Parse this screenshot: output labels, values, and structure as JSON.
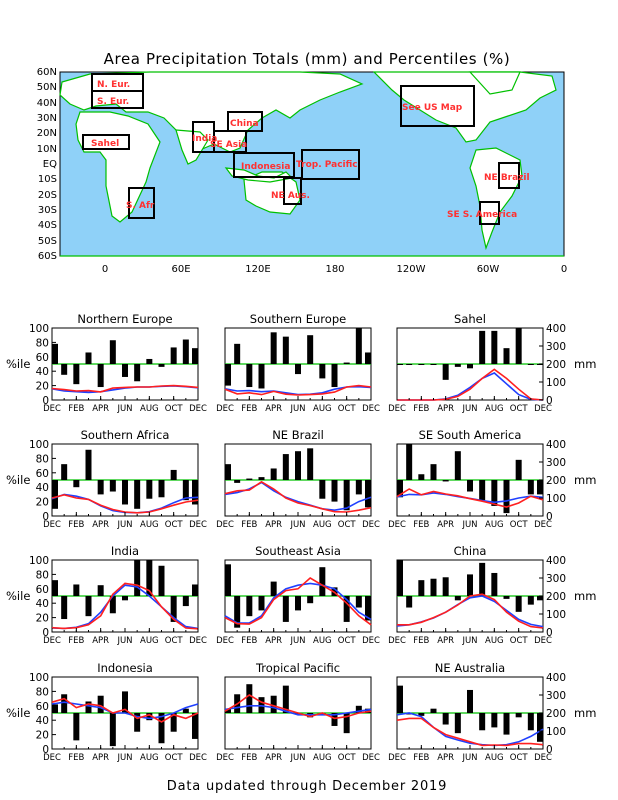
{
  "page": {
    "title": "Area Precipitation Totals (mm) and Percentiles (%)",
    "footer": "Data updated through December 2019"
  },
  "map": {
    "lat_labels": [
      "60N",
      "50N",
      "40N",
      "30N",
      "20N",
      "10N",
      "EQ",
      "10S",
      "20S",
      "30S",
      "40S",
      "50S",
      "60S"
    ],
    "lon_labels": [
      "0",
      "60E",
      "120E",
      "180",
      "120W",
      "60W",
      "0"
    ],
    "region_labels": [
      "N. Eur.",
      "S. Eur.",
      "Sahel",
      "S. Afr",
      "India",
      "China",
      "SE Asia",
      "Indonesia",
      "NE Aus.",
      "Trop. Pacific",
      "See US Map",
      "NE Brazil",
      "SE S. America"
    ],
    "ocean_color": "#8fd1f8",
    "land_color": "#ffffff",
    "coast_color": "#00c000",
    "box_color": "#000000",
    "label_color": "#ff3030"
  },
  "chart_data": [
    {
      "type": "bar+line",
      "title": "Northern Europe",
      "bars_percentile": [
        78,
        35,
        22,
        66,
        18,
        83,
        32,
        26,
        57,
        46,
        73,
        84,
        72
      ],
      "line_actual": [
        64,
        58,
        50,
        52,
        45,
        66,
        70,
        72,
        72,
        78,
        80,
        76,
        70
      ],
      "line_normal": [
        62,
        50,
        46,
        42,
        46,
        56,
        66,
        72,
        72,
        76,
        78,
        74,
        68
      ]
    },
    {
      "type": "bar+line",
      "title": "Southern Europe",
      "bars_percentile": [
        20,
        78,
        18,
        16,
        94,
        88,
        36,
        90,
        30,
        18,
        52,
        100,
        66
      ],
      "line_actual": [
        60,
        34,
        40,
        30,
        48,
        32,
        28,
        30,
        34,
        44,
        72,
        80,
        72
      ],
      "line_normal": [
        62,
        50,
        52,
        46,
        50,
        40,
        30,
        32,
        40,
        60,
        72,
        74,
        70
      ]
    },
    {
      "type": "bar+line",
      "title": "Sahel",
      "bars_percentile": [
        50,
        50,
        50,
        50,
        28,
        46,
        44,
        96,
        96,
        72,
        100,
        50,
        50
      ],
      "line_actual": [
        0,
        0,
        0,
        0,
        4,
        20,
        60,
        120,
        170,
        120,
        60,
        6,
        0
      ],
      "line_normal": [
        0,
        0,
        0,
        0,
        6,
        26,
        70,
        120,
        150,
        90,
        30,
        4,
        0
      ]
    },
    {
      "type": "bar+line",
      "title": "Southern Africa",
      "bars_percentile": [
        10,
        72,
        40,
        92,
        30,
        34,
        16,
        10,
        24,
        26,
        64,
        22,
        16
      ],
      "line_actual": [
        100,
        118,
        100,
        92,
        60,
        36,
        22,
        18,
        22,
        40,
        60,
        78,
        88
      ],
      "line_normal": [
        96,
        120,
        110,
        92,
        56,
        30,
        20,
        18,
        24,
        44,
        74,
        100,
        104
      ]
    },
    {
      "type": "bar+line",
      "title": "NE Brazil",
      "bars_percentile": [
        72,
        46,
        52,
        54,
        66,
        86,
        90,
        94,
        24,
        20,
        8,
        30,
        12
      ],
      "line_actual": [
        124,
        140,
        144,
        190,
        150,
        100,
        72,
        58,
        40,
        24,
        22,
        32,
        46
      ],
      "line_normal": [
        120,
        130,
        150,
        186,
        140,
        104,
        80,
        60,
        40,
        32,
        44,
        80,
        104
      ]
    },
    {
      "type": "bar+line",
      "title": "SE South America",
      "bars_percentile": [
        26,
        100,
        58,
        72,
        48,
        90,
        34,
        22,
        14,
        4,
        78,
        30,
        30
      ],
      "line_actual": [
        108,
        150,
        118,
        136,
        122,
        112,
        96,
        82,
        66,
        50,
        72,
        110,
        90
      ],
      "line_normal": [
        106,
        120,
        118,
        128,
        120,
        108,
        98,
        86,
        76,
        84,
        100,
        110,
        104
      ]
    },
    {
      "type": "bar+line",
      "title": "India",
      "bars_percentile": [
        72,
        18,
        66,
        22,
        65,
        26,
        44,
        100,
        100,
        92,
        14,
        36,
        66
      ],
      "line_actual": [
        24,
        20,
        24,
        40,
        90,
        210,
        270,
        260,
        230,
        140,
        70,
        22,
        18
      ],
      "line_normal": [
        22,
        20,
        26,
        46,
        110,
        200,
        260,
        250,
        200,
        140,
        80,
        30,
        20
      ]
    },
    {
      "type": "bar+line",
      "title": "Southeast Asia",
      "bars_percentile": [
        94,
        6,
        22,
        30,
        70,
        14,
        30,
        40,
        90,
        62,
        14,
        34,
        16
      ],
      "line_actual": [
        80,
        46,
        44,
        80,
        180,
        230,
        240,
        300,
        260,
        220,
        160,
        90,
        40
      ],
      "line_normal": [
        90,
        50,
        50,
        90,
        190,
        240,
        260,
        270,
        260,
        240,
        180,
        110,
        70
      ]
    },
    {
      "type": "bar+line",
      "title": "China",
      "bars_percentile": [
        100,
        34,
        72,
        74,
        76,
        44,
        80,
        96,
        82,
        46,
        28,
        38,
        44
      ],
      "line_actual": [
        40,
        40,
        54,
        80,
        110,
        150,
        200,
        210,
        180,
        110,
        60,
        30,
        22
      ],
      "line_normal": [
        34,
        40,
        56,
        78,
        110,
        152,
        190,
        200,
        170,
        120,
        70,
        42,
        30
      ]
    },
    {
      "type": "bar+line",
      "title": "Indonesia",
      "bars_percentile": [
        62,
        76,
        12,
        66,
        74,
        4,
        80,
        24,
        40,
        8,
        24,
        56,
        14
      ],
      "line_actual": [
        260,
        280,
        230,
        250,
        240,
        200,
        220,
        170,
        190,
        150,
        190,
        170,
        200
      ],
      "line_normal": [
        250,
        260,
        250,
        240,
        230,
        200,
        200,
        180,
        170,
        180,
        200,
        230,
        250
      ]
    },
    {
      "type": "bar+line",
      "title": "Tropical Pacific",
      "bars_percentile": [
        56,
        76,
        90,
        72,
        74,
        88,
        48,
        44,
        50,
        32,
        22,
        60,
        56
      ],
      "line_actual": [
        210,
        250,
        300,
        260,
        240,
        220,
        200,
        180,
        200,
        170,
        180,
        200,
        210
      ],
      "line_normal": [
        220,
        230,
        240,
        240,
        230,
        210,
        190,
        190,
        190,
        190,
        200,
        210,
        220
      ]
    },
    {
      "type": "bar+line",
      "title": "NE Australia",
      "bars_percentile": [
        88,
        48,
        46,
        56,
        34,
        22,
        82,
        26,
        30,
        20,
        44,
        26,
        10
      ],
      "line_actual": [
        160,
        170,
        170,
        120,
        80,
        60,
        40,
        20,
        22,
        20,
        30,
        30,
        24
      ],
      "line_normal": [
        190,
        200,
        180,
        120,
        70,
        50,
        32,
        24,
        20,
        24,
        40,
        70,
        110
      ]
    }
  ],
  "chart_common": {
    "x_tick_labels": [
      "DEC",
      "FEB",
      "APR",
      "JUN",
      "AUG",
      "OCT",
      "DEC"
    ],
    "left_ticks": [
      "0",
      "20",
      "40",
      "60",
      "80",
      "100"
    ],
    "right_ticks": [
      "0",
      "100",
      "200",
      "300",
      "400"
    ],
    "left_ylim": [
      0,
      100
    ],
    "right_ylim": [
      0,
      400
    ],
    "left_unit": "%ile",
    "right_unit": "mm",
    "median_line": 50,
    "bar_color": "#000000",
    "actual_color": "#ff2020",
    "normal_color": "#2040ff",
    "median_color": "#00c000"
  }
}
